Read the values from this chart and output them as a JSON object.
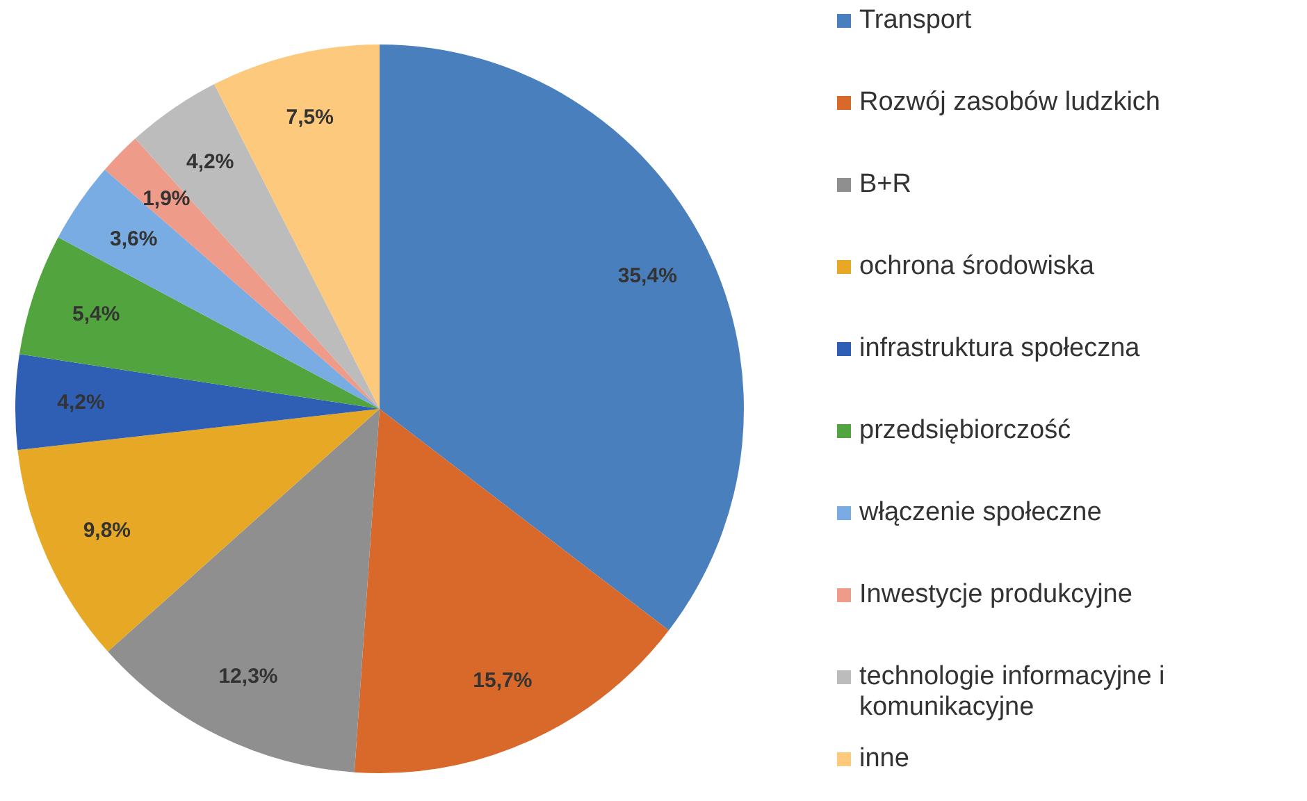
{
  "chart_data": {
    "type": "pie",
    "categories": [
      "Transport",
      "Rozwój zasobów ludzkich",
      "B+R",
      "ochrona środowiska",
      "infrastruktura społeczna",
      "przedsiębiorczość",
      "włączenie społeczne",
      "Inwestycje produkcyjne",
      "technologie informacyjne i komunikacyjne",
      "inne"
    ],
    "values": [
      35.4,
      15.7,
      12.3,
      9.8,
      4.2,
      5.4,
      3.6,
      1.9,
      4.2,
      7.5
    ],
    "colors": [
      "#4a7fbd",
      "#d8692a",
      "#8f8f8f",
      "#e6a825",
      "#2f5fb5",
      "#52a53e",
      "#78ace2",
      "#ee9b8a",
      "#bcbcbc",
      "#fdc97c"
    ],
    "value_labels": [
      "35,4%",
      "15,7%",
      "12,3%",
      "9,8%",
      "4,2%",
      "5,4%",
      "3,6%",
      "1,9%",
      "4,2%",
      "7,5%"
    ],
    "legend": "right"
  }
}
